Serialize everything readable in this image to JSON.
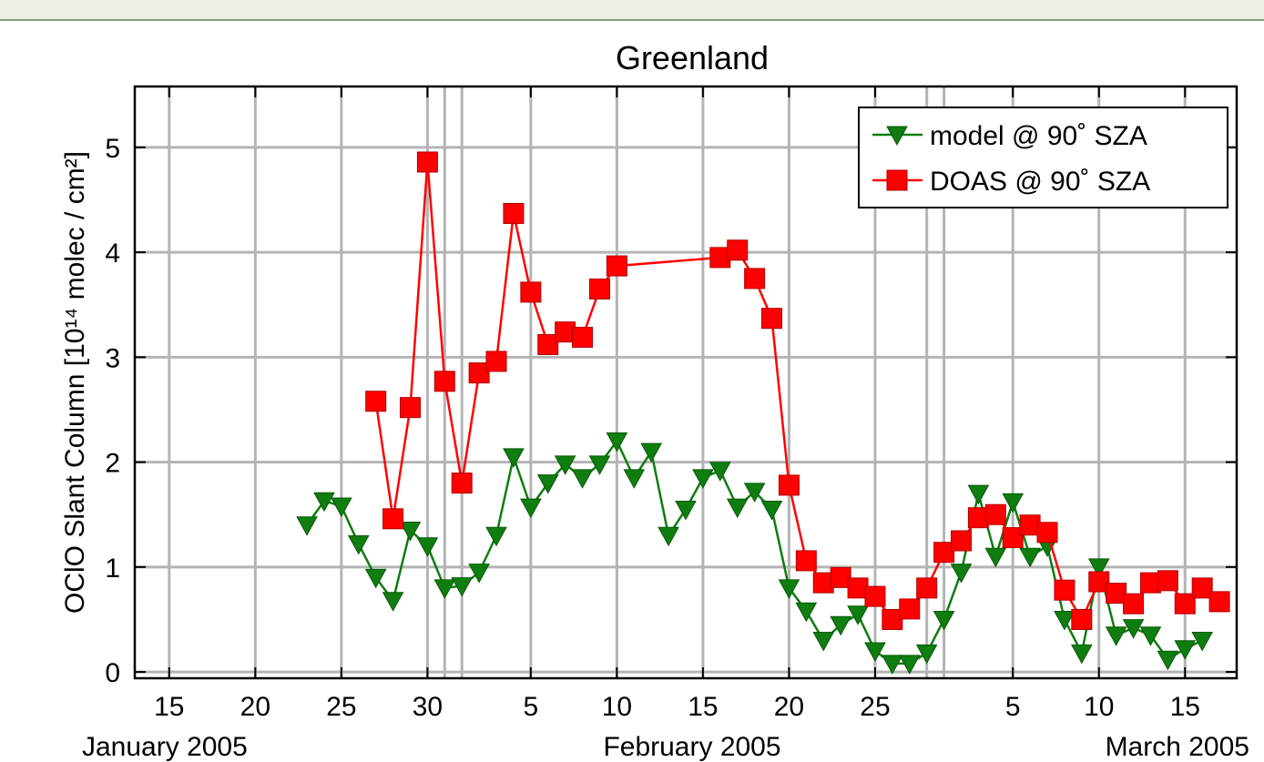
{
  "chart_data": {
    "type": "line",
    "title": "Greenland",
    "y_label": "OClO Slant Column  [10¹⁴ molec / cm²]",
    "x_group_labels": [
      "January 2005",
      "February 2005",
      "March 2005"
    ],
    "xlim": [
      "2005-01-13",
      "2005-03-18"
    ],
    "xticks": [
      {
        "value": "2005-01-15",
        "label": "15"
      },
      {
        "value": "2005-01-20",
        "label": "20"
      },
      {
        "value": "2005-01-25",
        "label": "25"
      },
      {
        "value": "2005-01-30",
        "label": "30"
      },
      {
        "value": "2005-02-05",
        "label": "5"
      },
      {
        "value": "2005-02-10",
        "label": "10"
      },
      {
        "value": "2005-02-15",
        "label": "15"
      },
      {
        "value": "2005-02-20",
        "label": "20"
      },
      {
        "value": "2005-02-25",
        "label": "25"
      },
      {
        "value": "2005-03-05",
        "label": "5"
      },
      {
        "value": "2005-03-10",
        "label": "10"
      },
      {
        "value": "2005-03-15",
        "label": "15"
      }
    ],
    "ylim": [
      -0.06,
      5.58
    ],
    "yticks": [
      0,
      1,
      2,
      3,
      4,
      5
    ],
    "grid": true,
    "legend": "upper right",
    "series": [
      {
        "name": "model @ 90˚ SZA",
        "color": "#0f7d0f",
        "marker": "triangle-down",
        "x": [
          "2005-01-23",
          "2005-01-24",
          "2005-01-25",
          "2005-01-26",
          "2005-01-27",
          "2005-01-28",
          "2005-01-29",
          "2005-01-30",
          "2005-01-31",
          "2005-02-01",
          "2005-02-02",
          "2005-02-03",
          "2005-02-04",
          "2005-02-05",
          "2005-02-06",
          "2005-02-07",
          "2005-02-08",
          "2005-02-09",
          "2005-02-10",
          "2005-02-11",
          "2005-02-12",
          "2005-02-13",
          "2005-02-14",
          "2005-02-15",
          "2005-02-16",
          "2005-02-17",
          "2005-02-18",
          "2005-02-19",
          "2005-02-20",
          "2005-02-21",
          "2005-02-22",
          "2005-02-23",
          "2005-02-24",
          "2005-02-25",
          "2005-02-26",
          "2005-02-27",
          "2005-02-28",
          "2005-03-01",
          "2005-03-02",
          "2005-03-03",
          "2005-03-04",
          "2005-03-05",
          "2005-03-06",
          "2005-03-07",
          "2005-03-08",
          "2005-03-09",
          "2005-03-10",
          "2005-03-11",
          "2005-03-12",
          "2005-03-13",
          "2005-03-14",
          "2005-03-15",
          "2005-03-16"
        ],
        "values": [
          1.4,
          1.63,
          1.58,
          1.22,
          0.9,
          0.68,
          1.35,
          1.2,
          0.8,
          0.82,
          0.95,
          1.3,
          2.05,
          1.57,
          1.8,
          1.98,
          1.85,
          1.98,
          2.2,
          1.85,
          2.1,
          1.3,
          1.55,
          1.85,
          1.92,
          1.57,
          1.72,
          1.55,
          0.8,
          0.58,
          0.3,
          0.45,
          0.55,
          0.2,
          0.08,
          0.08,
          0.18,
          0.5,
          0.95,
          1.7,
          1.1,
          1.62,
          1.1,
          1.2,
          0.5,
          0.18,
          1.0,
          0.35,
          0.42,
          0.35,
          0.12,
          0.22,
          0.3
        ]
      },
      {
        "name": "DOAS @ 90˚ SZA",
        "color": "#ff0000",
        "marker": "square",
        "x": [
          "2005-01-27",
          "2005-01-28",
          "2005-01-29",
          "2005-01-30",
          "2005-01-31",
          "2005-02-01",
          "2005-02-02",
          "2005-02-03",
          "2005-02-04",
          "2005-02-05",
          "2005-02-06",
          "2005-02-07",
          "2005-02-08",
          "2005-02-09",
          "2005-02-10",
          "2005-02-16",
          "2005-02-17",
          "2005-02-18",
          "2005-02-19",
          "2005-02-20",
          "2005-02-21",
          "2005-02-22",
          "2005-02-23",
          "2005-02-24",
          "2005-02-25",
          "2005-02-26",
          "2005-02-27",
          "2005-02-28",
          "2005-03-01",
          "2005-03-02",
          "2005-03-03",
          "2005-03-04",
          "2005-03-05",
          "2005-03-06",
          "2005-03-07",
          "2005-03-08",
          "2005-03-09",
          "2005-03-10",
          "2005-03-11",
          "2005-03-12",
          "2005-03-13",
          "2005-03-14",
          "2005-03-15",
          "2005-03-16",
          "2005-03-17"
        ],
        "values": [
          2.58,
          1.46,
          2.52,
          4.86,
          2.77,
          1.8,
          2.85,
          2.96,
          4.37,
          3.62,
          3.12,
          3.24,
          3.19,
          3.65,
          3.87,
          3.95,
          4.02,
          3.75,
          3.37,
          1.78,
          1.06,
          0.85,
          0.9,
          0.8,
          0.72,
          0.5,
          0.6,
          0.8,
          1.14,
          1.25,
          1.47,
          1.5,
          1.28,
          1.4,
          1.33,
          0.78,
          0.5,
          0.86,
          0.75,
          0.65,
          0.85,
          0.87,
          0.65,
          0.8,
          0.67
        ]
      }
    ]
  }
}
